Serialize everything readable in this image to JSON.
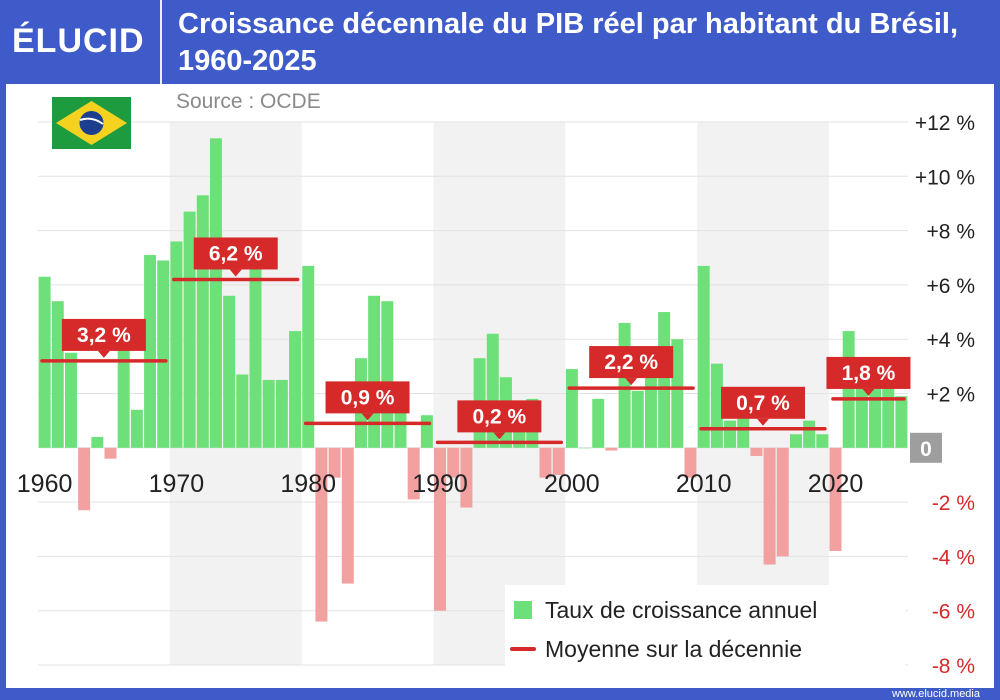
{
  "header": {
    "logo": "ÉLUCID",
    "title": "Croissance décennale du PIB réel par habitant du Brésil, 1960-2025",
    "source": "Source : OCDE"
  },
  "footer": {
    "url": "www.elucid.media"
  },
  "colors": {
    "positive": "#6ee07a",
    "negative": "#f2a0a0",
    "average": "#d62a2a",
    "label_bg": "#d62a2a",
    "decade_band": "#f2f2f2",
    "header": "#3f5bc9"
  },
  "chart_data": {
    "type": "bar",
    "x": [
      1960,
      1961,
      1962,
      1963,
      1964,
      1965,
      1966,
      1967,
      1968,
      1969,
      1970,
      1971,
      1972,
      1973,
      1974,
      1975,
      1976,
      1977,
      1978,
      1979,
      1980,
      1981,
      1982,
      1983,
      1984,
      1985,
      1986,
      1987,
      1988,
      1989,
      1990,
      1991,
      1992,
      1993,
      1994,
      1995,
      1996,
      1997,
      1998,
      1999,
      2000,
      2001,
      2002,
      2003,
      2004,
      2005,
      2006,
      2007,
      2008,
      2009,
      2010,
      2011,
      2012,
      2013,
      2014,
      2015,
      2016,
      2017,
      2018,
      2019,
      2020,
      2021,
      2022,
      2023,
      2024,
      2025
    ],
    "series": [
      {
        "name": "Taux de croissance annuel",
        "values": [
          6.3,
          5.4,
          3.5,
          -2.3,
          0.4,
          -0.4,
          3.8,
          1.4,
          7.1,
          6.9,
          7.6,
          8.7,
          9.3,
          11.4,
          5.6,
          2.7,
          7.3,
          2.5,
          2.5,
          4.3,
          6.7,
          -6.4,
          -1.1,
          -5.0,
          3.3,
          5.6,
          5.4,
          1.7,
          -1.9,
          1.2,
          -6.0,
          -1.1,
          -2.2,
          3.3,
          4.2,
          2.6,
          0.7,
          1.8,
          -1.1,
          -1.0,
          2.9,
          0.0,
          1.8,
          -0.1,
          4.6,
          2.1,
          3.1,
          5.0,
          4.0,
          -1.1,
          6.7,
          3.1,
          1.0,
          2.1,
          -0.3,
          -4.3,
          -4.0,
          0.5,
          1.0,
          0.5,
          -3.8,
          4.3,
          2.3,
          2.4,
          3.0,
          1.9
        ]
      },
      {
        "name": "Moyenne sur la décennie",
        "decades": [
          {
            "start": 1960,
            "end": 1969,
            "value": 3.2,
            "label": "3,2 %"
          },
          {
            "start": 1970,
            "end": 1979,
            "value": 6.2,
            "label": "6,2 %"
          },
          {
            "start": 1980,
            "end": 1989,
            "value": 0.9,
            "label": "0,9 %"
          },
          {
            "start": 1990,
            "end": 1999,
            "value": 0.2,
            "label": "0,2 %"
          },
          {
            "start": 2000,
            "end": 2009,
            "value": 2.2,
            "label": "2,2 %"
          },
          {
            "start": 2010,
            "end": 2019,
            "value": 0.7,
            "label": "0,7 %"
          },
          {
            "start": 2020,
            "end": 2025,
            "value": 1.8,
            "label": "1,8 %"
          }
        ]
      }
    ],
    "x_ticks": [
      "1960",
      "1970",
      "1980",
      "1990",
      "2000",
      "2010",
      "2020"
    ],
    "y_ticks": [
      "+12 %",
      "+10 %",
      "+8 %",
      "+6 %",
      "+4 %",
      "+2 %",
      "0",
      "-2 %",
      "-4 %",
      "-6 %",
      "-8 %"
    ],
    "y_tick_values": [
      12,
      10,
      8,
      6,
      4,
      2,
      0,
      -2,
      -4,
      -6,
      -8
    ],
    "ylim": [
      -8,
      12
    ],
    "y_axis_side": "right",
    "grid": true,
    "legend": {
      "position": "bottom-right",
      "items": [
        "Taux de croissance annuel",
        "Moyenne sur la décennie"
      ]
    }
  }
}
